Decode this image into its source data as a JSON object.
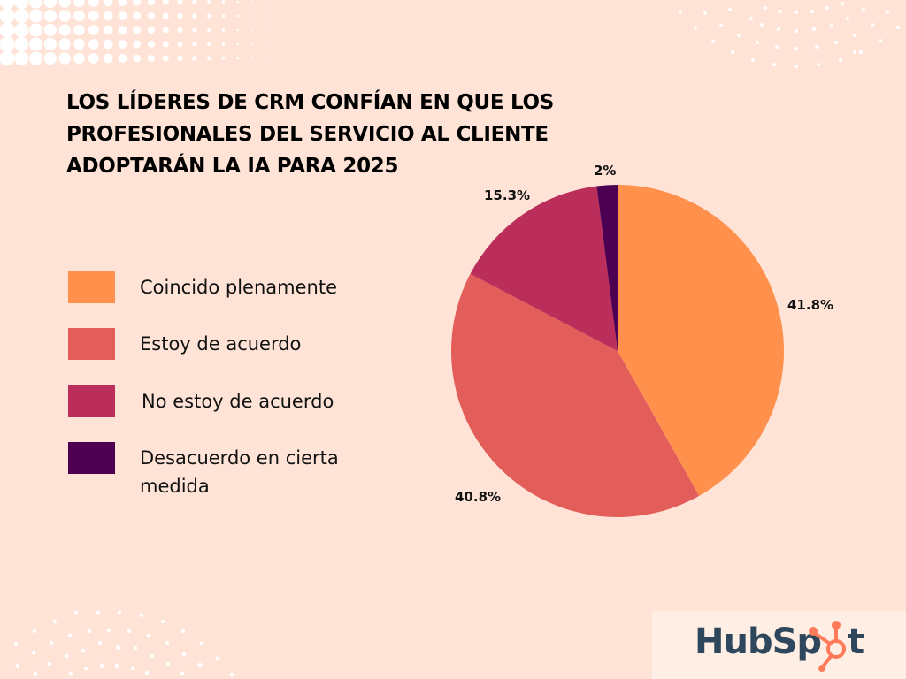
{
  "title": {
    "lines": [
      "LOS LÍDERES DE CRM CONFÍAN EN QUE LOS",
      "PROFESIONALES DEL SERVICIO AL CLIENTE",
      "ADOPTARÁN LA IA PARA 2025"
    ]
  },
  "legend": {
    "items": [
      {
        "label": "Coincido plenamente",
        "color": "#ff914d"
      },
      {
        "label": "Estoy de acuerdo",
        "color": "#e35d5a"
      },
      {
        "label": "No estoy de acuerdo",
        "color": "#bb2e5b"
      },
      {
        "label": "Desacuerdo en cierta medida",
        "color": "#4d0052"
      }
    ]
  },
  "pie_labels": {
    "coincido": "41.8%",
    "estoy": "40.8%",
    "no_estoy": "15.3%",
    "desacuerdo": "2%"
  },
  "logo": {
    "text_hub": "HubSp",
    "text_t": "t",
    "brand": "HubSpot",
    "text_color": "#2e475d",
    "accent_color": "#ff7a59"
  },
  "colors": {
    "background": "#fee3d6",
    "logo_background": "#feeee3"
  },
  "chart_data": {
    "type": "pie",
    "title": "LOS LÍDERES DE CRM CONFÍAN EN QUE LOS PROFESIONALES DEL SERVICIO AL CLIENTE ADOPTARÁN LA IA PARA 2025",
    "categories": [
      "Coincido plenamente",
      "Estoy de acuerdo",
      "No estoy de acuerdo",
      "Desacuerdo en cierta medida"
    ],
    "values": [
      41.8,
      40.8,
      15.3,
      2
    ],
    "unit": "%",
    "colors": [
      "#ff914d",
      "#e35d5a",
      "#bb2e5b",
      "#4d0052"
    ],
    "legend_position": "left",
    "start_angle": "12 o'clock, clockwise"
  }
}
